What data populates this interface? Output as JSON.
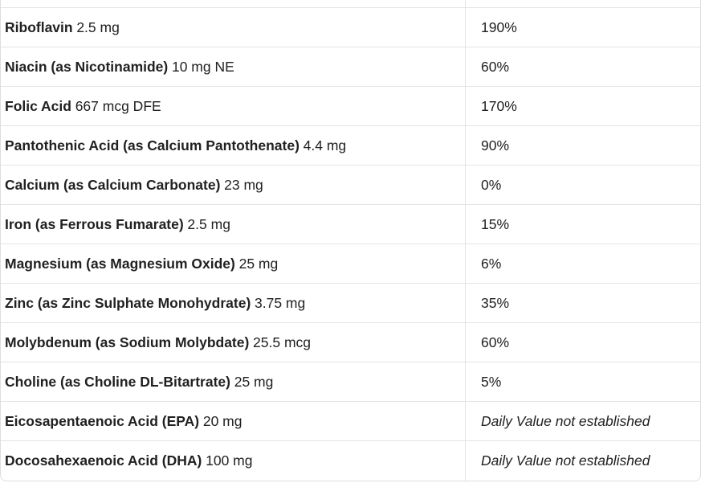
{
  "table": {
    "description": "supplement-facts-table",
    "columns": [
      "nutrient",
      "daily_value"
    ],
    "rows": [
      {
        "name": "Riboflavin",
        "amount": "2.5 mg",
        "daily_value": "190%",
        "daily_value_italic": false
      },
      {
        "name": "Niacin (as Nicotinamide)",
        "amount": "10 mg NE",
        "daily_value": "60%",
        "daily_value_italic": false
      },
      {
        "name": "Folic Acid",
        "amount": "667 mcg DFE",
        "daily_value": "170%",
        "daily_value_italic": false
      },
      {
        "name": "Pantothenic Acid (as Calcium Pantothenate)",
        "amount": "4.4 mg",
        "daily_value": "90%",
        "daily_value_italic": false
      },
      {
        "name": "Calcium (as Calcium Carbonate)",
        "amount": "23 mg",
        "daily_value": "0%",
        "daily_value_italic": false
      },
      {
        "name": "Iron (as Ferrous Fumarate)",
        "amount": "2.5 mg",
        "daily_value": "15%",
        "daily_value_italic": false
      },
      {
        "name": "Magnesium (as Magnesium Oxide)",
        "amount": "25 mg",
        "daily_value": "6%",
        "daily_value_italic": false
      },
      {
        "name": "Zinc (as Zinc Sulphate Monohydrate)",
        "amount": "3.75 mg",
        "daily_value": "35%",
        "daily_value_italic": false
      },
      {
        "name": "Molybdenum (as Sodium Molybdate)",
        "amount": "25.5 mcg",
        "daily_value": "60%",
        "daily_value_italic": false
      },
      {
        "name": "Choline (as Choline DL-Bitartrate)",
        "amount": "25 mg",
        "daily_value": "5%",
        "daily_value_italic": false
      },
      {
        "name": "Eicosapentaenoic Acid (EPA)",
        "amount": "20 mg",
        "daily_value": "Daily Value not established",
        "daily_value_italic": true
      },
      {
        "name": "Docosahexaenoic Acid (DHA)",
        "amount": "100 mg",
        "daily_value": "Daily Value not established",
        "daily_value_italic": true
      }
    ],
    "colors": {
      "row_border": "#e4e4e4",
      "outer_border": "#dedede",
      "text": "#212121",
      "background": "#ffffff"
    }
  }
}
